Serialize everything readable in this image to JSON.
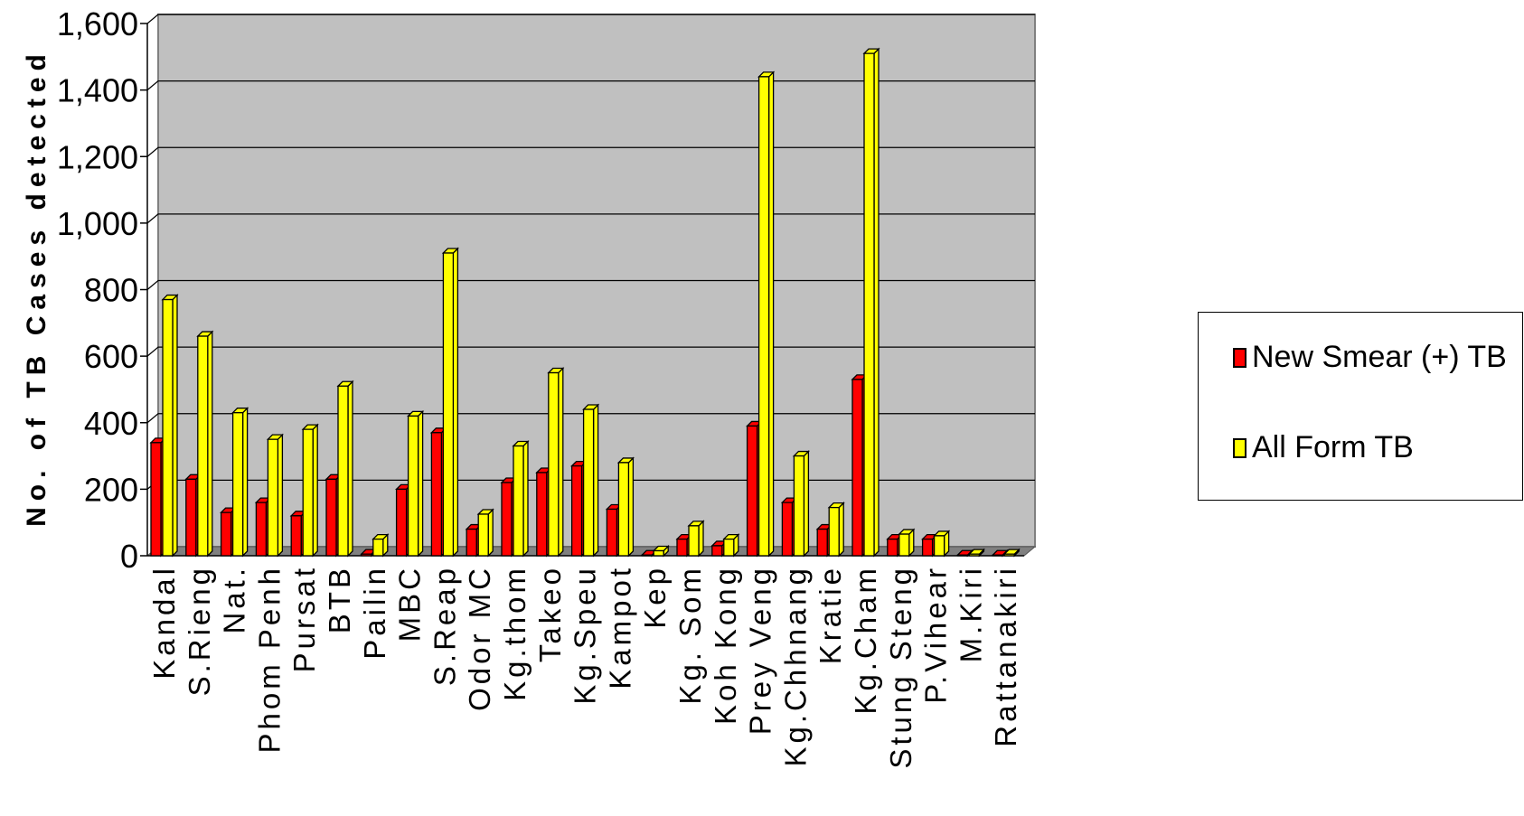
{
  "chart_data": {
    "type": "bar",
    "title": "",
    "xlabel": "",
    "ylabel": "No. of TB Cases detected",
    "ylim": [
      0,
      1600
    ],
    "yticks": [
      0,
      200,
      400,
      600,
      800,
      1000,
      1200,
      1400,
      1600
    ],
    "ytick_labels": [
      "0",
      "200",
      "400",
      "600",
      "800",
      "1,000",
      "1,200",
      "1,400",
      "1,600"
    ],
    "grid": true,
    "legend_position": "right",
    "categories": [
      "Kandal",
      "S.Rieng",
      "Nat.",
      "Phom Penh",
      "Pursat",
      "BTB",
      "Pailin",
      "MBC",
      "S.Reap",
      "Odor MC",
      "Kg.thom",
      "Takeo",
      "Kg.Speu",
      "Kampot",
      "Kep",
      "Kg. Som",
      "Koh Kong",
      "Prey Veng",
      "Kg.Chhnang",
      "Kratie",
      "Kg.Cham",
      "Stung Steng",
      "P.Vihear",
      "M.Kiri",
      "Rattanakiri"
    ],
    "series": [
      {
        "name": "New Smear (+) TB",
        "color": "#ff0000",
        "values": [
          340,
          230,
          130,
          160,
          120,
          230,
          5,
          200,
          370,
          80,
          220,
          250,
          270,
          140,
          2,
          50,
          30,
          390,
          160,
          80,
          530,
          50,
          50,
          2,
          2
        ]
      },
      {
        "name": "All Form TB",
        "color": "#ffff00",
        "values": [
          770,
          660,
          430,
          350,
          380,
          510,
          50,
          420,
          910,
          125,
          330,
          550,
          440,
          280,
          15,
          90,
          50,
          1440,
          300,
          145,
          1510,
          65,
          60,
          5,
          5
        ]
      }
    ]
  },
  "legend": {
    "item1": "New Smear (+) TB",
    "item2": "All Form TB"
  },
  "colors": {
    "plot_background": "#c0c0c0",
    "floor": "#808080",
    "series1": "#ff0000",
    "series2": "#ffff00"
  }
}
